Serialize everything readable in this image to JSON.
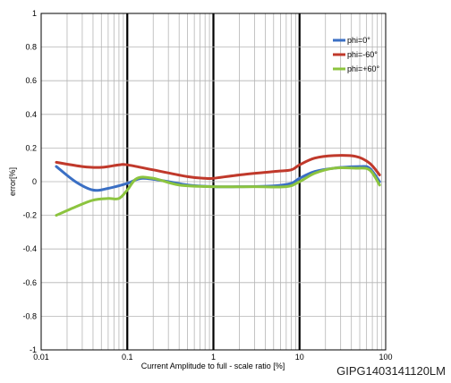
{
  "chart_data": {
    "type": "line",
    "xscale": "log",
    "xlim": [
      0.01,
      100
    ],
    "ylim": [
      -1,
      1
    ],
    "xlabel": "Current Amplitude to full  - scale ratio [%]",
    "ylabel": "error[%]",
    "grid": true,
    "legend_position": "top-right",
    "x_tick_labels": [
      "0.01",
      "0.1",
      "1",
      "10",
      "100"
    ],
    "y_tick_labels": [
      "-1",
      "-0.8",
      "-0.6",
      "-0.4",
      "-0.2",
      "0",
      "0.2",
      "0.4",
      "0.6",
      "0.8",
      "1"
    ],
    "series": [
      {
        "name": "phi=0°",
        "color": "#3a6fc4",
        "points": [
          [
            0.015,
            0.09
          ],
          [
            0.025,
            0.0
          ],
          [
            0.04,
            -0.05
          ],
          [
            0.06,
            -0.04
          ],
          [
            0.1,
            -0.01
          ],
          [
            0.15,
            0.02
          ],
          [
            0.3,
            0.0
          ],
          [
            0.5,
            -0.02
          ],
          [
            1,
            -0.03
          ],
          [
            2,
            -0.03
          ],
          [
            5,
            -0.025
          ],
          [
            8,
            -0.01
          ],
          [
            10,
            0.02
          ],
          [
            15,
            0.06
          ],
          [
            25,
            0.08
          ],
          [
            50,
            0.09
          ],
          [
            65,
            0.08
          ],
          [
            85,
            0.0
          ]
        ]
      },
      {
        "name": "phi=-60°",
        "color": "#c0392b",
        "points": [
          [
            0.015,
            0.115
          ],
          [
            0.03,
            0.09
          ],
          [
            0.05,
            0.085
          ],
          [
            0.08,
            0.1
          ],
          [
            0.1,
            0.1
          ],
          [
            0.2,
            0.07
          ],
          [
            0.5,
            0.03
          ],
          [
            0.8,
            0.02
          ],
          [
            1,
            0.02
          ],
          [
            2,
            0.04
          ],
          [
            5,
            0.06
          ],
          [
            8,
            0.07
          ],
          [
            10,
            0.1
          ],
          [
            15,
            0.14
          ],
          [
            25,
            0.155
          ],
          [
            45,
            0.15
          ],
          [
            65,
            0.11
          ],
          [
            85,
            0.04
          ]
        ]
      },
      {
        "name": "phi=+60°",
        "color": "#8cc43f",
        "points": [
          [
            0.015,
            -0.2
          ],
          [
            0.025,
            -0.15
          ],
          [
            0.04,
            -0.11
          ],
          [
            0.06,
            -0.1
          ],
          [
            0.08,
            -0.1
          ],
          [
            0.1,
            -0.05
          ],
          [
            0.13,
            0.02
          ],
          [
            0.2,
            0.02
          ],
          [
            0.4,
            -0.02
          ],
          [
            1,
            -0.03
          ],
          [
            3,
            -0.03
          ],
          [
            7,
            -0.03
          ],
          [
            10,
            0.0
          ],
          [
            15,
            0.05
          ],
          [
            25,
            0.08
          ],
          [
            45,
            0.08
          ],
          [
            65,
            0.07
          ],
          [
            85,
            -0.02
          ]
        ]
      }
    ]
  },
  "watermark": "GIPG1403141120LM"
}
